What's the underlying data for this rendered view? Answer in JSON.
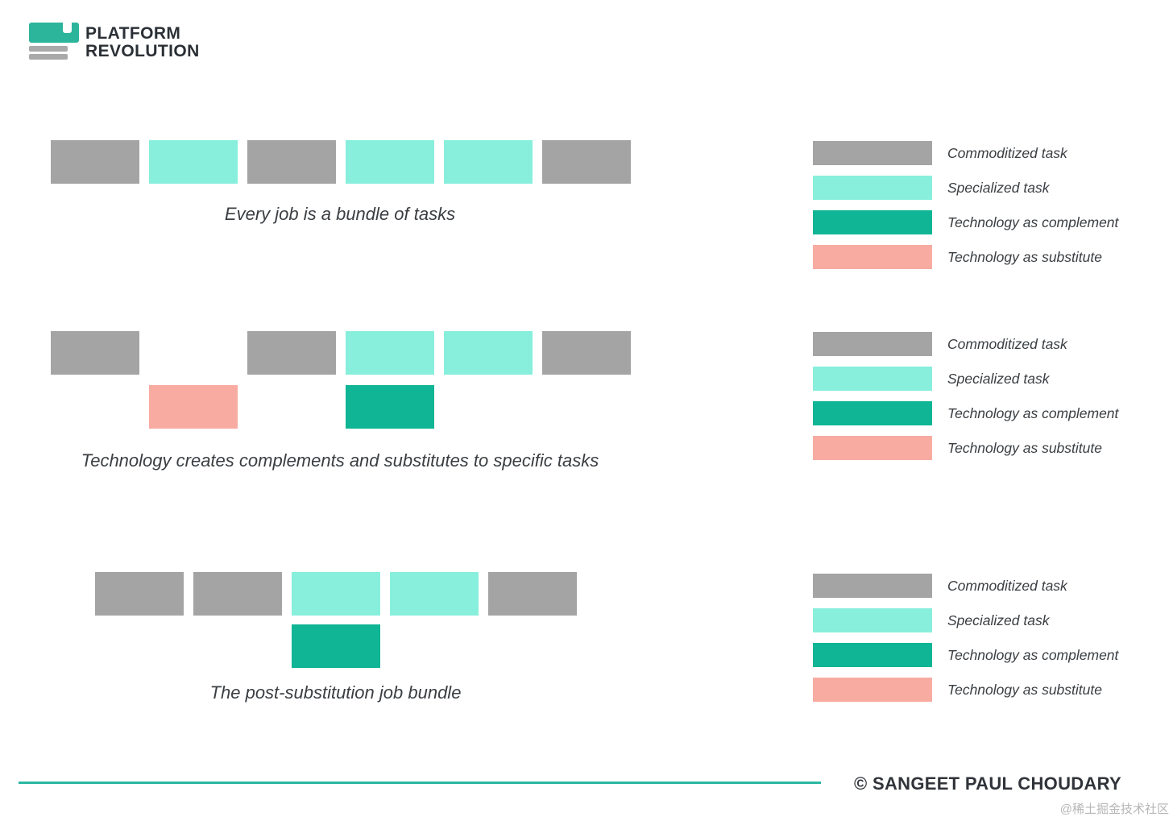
{
  "logo": {
    "line1": "PLATFORM",
    "line2": "REVOLUTION"
  },
  "colors": {
    "commoditized": "#a5a4a4",
    "specialized": "#87efdc",
    "complement": "#0fb594",
    "substitute": "#f8aba1",
    "divider": "#2cb7a2",
    "logo_teal": "#2cb59b",
    "logo_gray": "#a9a9a9",
    "text_dark": "#3a3e42",
    "watermark_gray": "#b5b5b5"
  },
  "diagrams": [
    {
      "caption": "Every job is a bundle of tasks",
      "blocks": [
        {
          "row": 0,
          "slot": 0,
          "type": "commoditized"
        },
        {
          "row": 0,
          "slot": 1,
          "type": "specialized"
        },
        {
          "row": 0,
          "slot": 2,
          "type": "commoditized"
        },
        {
          "row": 0,
          "slot": 3,
          "type": "specialized"
        },
        {
          "row": 0,
          "slot": 4,
          "type": "specialized"
        },
        {
          "row": 0,
          "slot": 5,
          "type": "commoditized"
        }
      ]
    },
    {
      "caption": "Technology creates complements and substitutes to specific tasks",
      "blocks": [
        {
          "row": 0,
          "slot": 0,
          "type": "commoditized"
        },
        {
          "row": 0,
          "slot": 2,
          "type": "commoditized"
        },
        {
          "row": 0,
          "slot": 3,
          "type": "specialized"
        },
        {
          "row": 0,
          "slot": 4,
          "type": "specialized"
        },
        {
          "row": 0,
          "slot": 5,
          "type": "commoditized"
        },
        {
          "row": 1,
          "slot": 1,
          "type": "substitute"
        },
        {
          "row": 1,
          "slot": 3,
          "type": "complement"
        }
      ]
    },
    {
      "caption": "The post-substitution job bundle",
      "blocks": [
        {
          "row": 0,
          "slot": 0,
          "type": "commoditized"
        },
        {
          "row": 0,
          "slot": 1,
          "type": "commoditized"
        },
        {
          "row": 0,
          "slot": 2,
          "type": "specialized"
        },
        {
          "row": 0,
          "slot": 3,
          "type": "specialized"
        },
        {
          "row": 0,
          "slot": 4,
          "type": "commoditized"
        },
        {
          "row": 1,
          "slot": 2,
          "type": "complement"
        }
      ]
    }
  ],
  "legend": {
    "entries": [
      {
        "type": "commoditized",
        "label": "Commoditized task"
      },
      {
        "type": "specialized",
        "label": "Specialized task"
      },
      {
        "type": "complement",
        "label": "Technology as complement"
      },
      {
        "type": "substitute",
        "label": "Technology as substitute"
      }
    ]
  },
  "footer": {
    "copyright": "© SANGEET PAUL CHOUDARY",
    "watermark": "@稀土掘金技术社区"
  }
}
